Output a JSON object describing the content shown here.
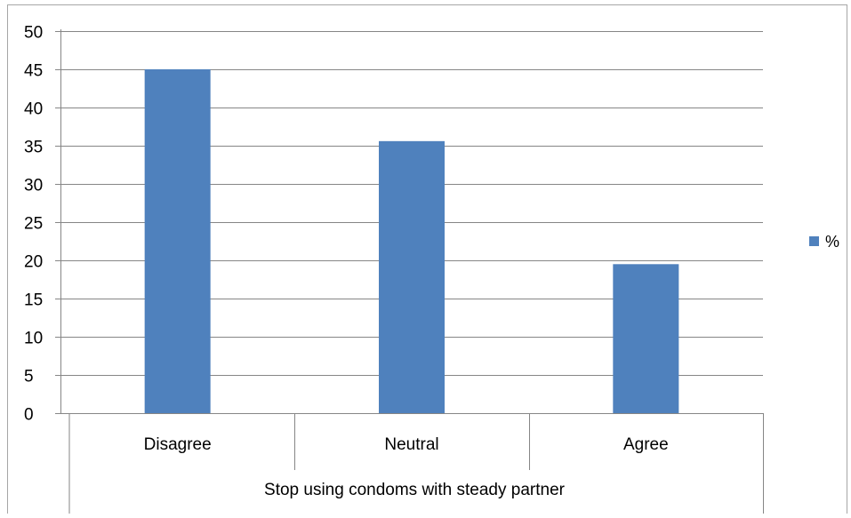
{
  "chart_data": {
    "type": "bar",
    "categories": [
      "Disagree",
      "Neutral",
      "Agree"
    ],
    "series": [
      {
        "name": "%",
        "values": [
          45,
          35.6,
          19.5
        ],
        "color": "#4f81bd"
      }
    ],
    "x_group_label": "Stop using condoms with steady partner",
    "y_ticks": [
      "0",
      "5",
      "10",
      "15",
      "20",
      "25",
      "30",
      "35",
      "40",
      "45",
      "50"
    ],
    "ylim": [
      0,
      50
    ],
    "grid": true,
    "legend_position": "right",
    "title": "",
    "xlabel": "",
    "ylabel": ""
  }
}
